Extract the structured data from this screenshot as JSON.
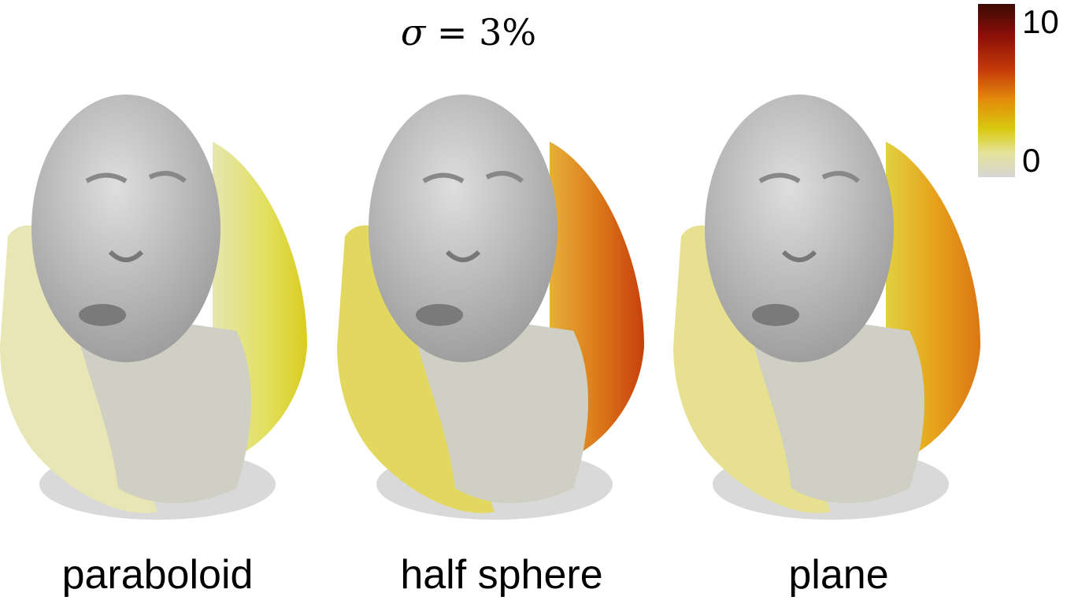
{
  "title": {
    "prefix": "σ",
    "equals": " = 3%"
  },
  "colorbar": {
    "max_label": "10",
    "min_label": "0"
  },
  "panels": [
    {
      "caption": "paraboloid",
      "scheme": "low"
    },
    {
      "caption": "half sphere",
      "scheme": "high"
    },
    {
      "caption": "plane",
      "scheme": "mid"
    }
  ],
  "colors": {
    "face": "#c4c4c4",
    "low": "#e0dc3a",
    "mid": "#e8a818",
    "high": "#d8661a",
    "shadow": "#d9d9d9"
  }
}
